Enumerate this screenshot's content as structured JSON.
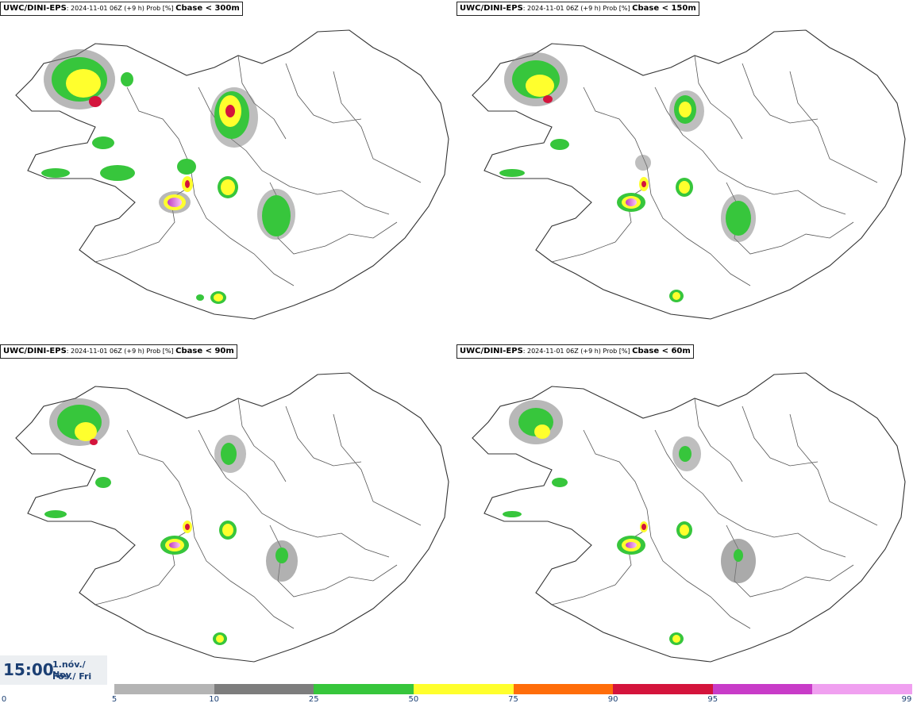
{
  "panels": [
    {
      "model": "UWC/DINI-EPS",
      "meta": ": 2024-11-01 06Z (+9 h) Prob [%] ",
      "cbase": "Cbase < 300m"
    },
    {
      "model": "UWC/DINI-EPS",
      "meta": ": 2024-11-01 06Z (+9 h) Prob [%] ",
      "cbase": "Cbase < 150m"
    },
    {
      "model": "UWC/DINI-EPS",
      "meta": ": 2024-11-01 06Z (+9 h) Prob [%] ",
      "cbase": "Cbase < 90m"
    },
    {
      "model": "UWC/DINI-EPS",
      "meta": ": 2024-11-01 06Z (+9 h) Prob [%] ",
      "cbase": "Cbase < 60m"
    }
  ],
  "valid": {
    "time": "15:00",
    "date": "1.nóv./ Nov",
    "day": "Fös./ Fri"
  },
  "colorbar": {
    "ticks": [
      "0",
      "5",
      "10",
      "25",
      "50",
      "75",
      "90",
      "95",
      "99"
    ],
    "colors": [
      "#b4b4b4",
      "#7d7d7d",
      "#37c63c",
      "#ffff2d",
      "#ff6d0a",
      "#d4143c",
      "#c83cc8",
      "#f0a0f0"
    ]
  }
}
